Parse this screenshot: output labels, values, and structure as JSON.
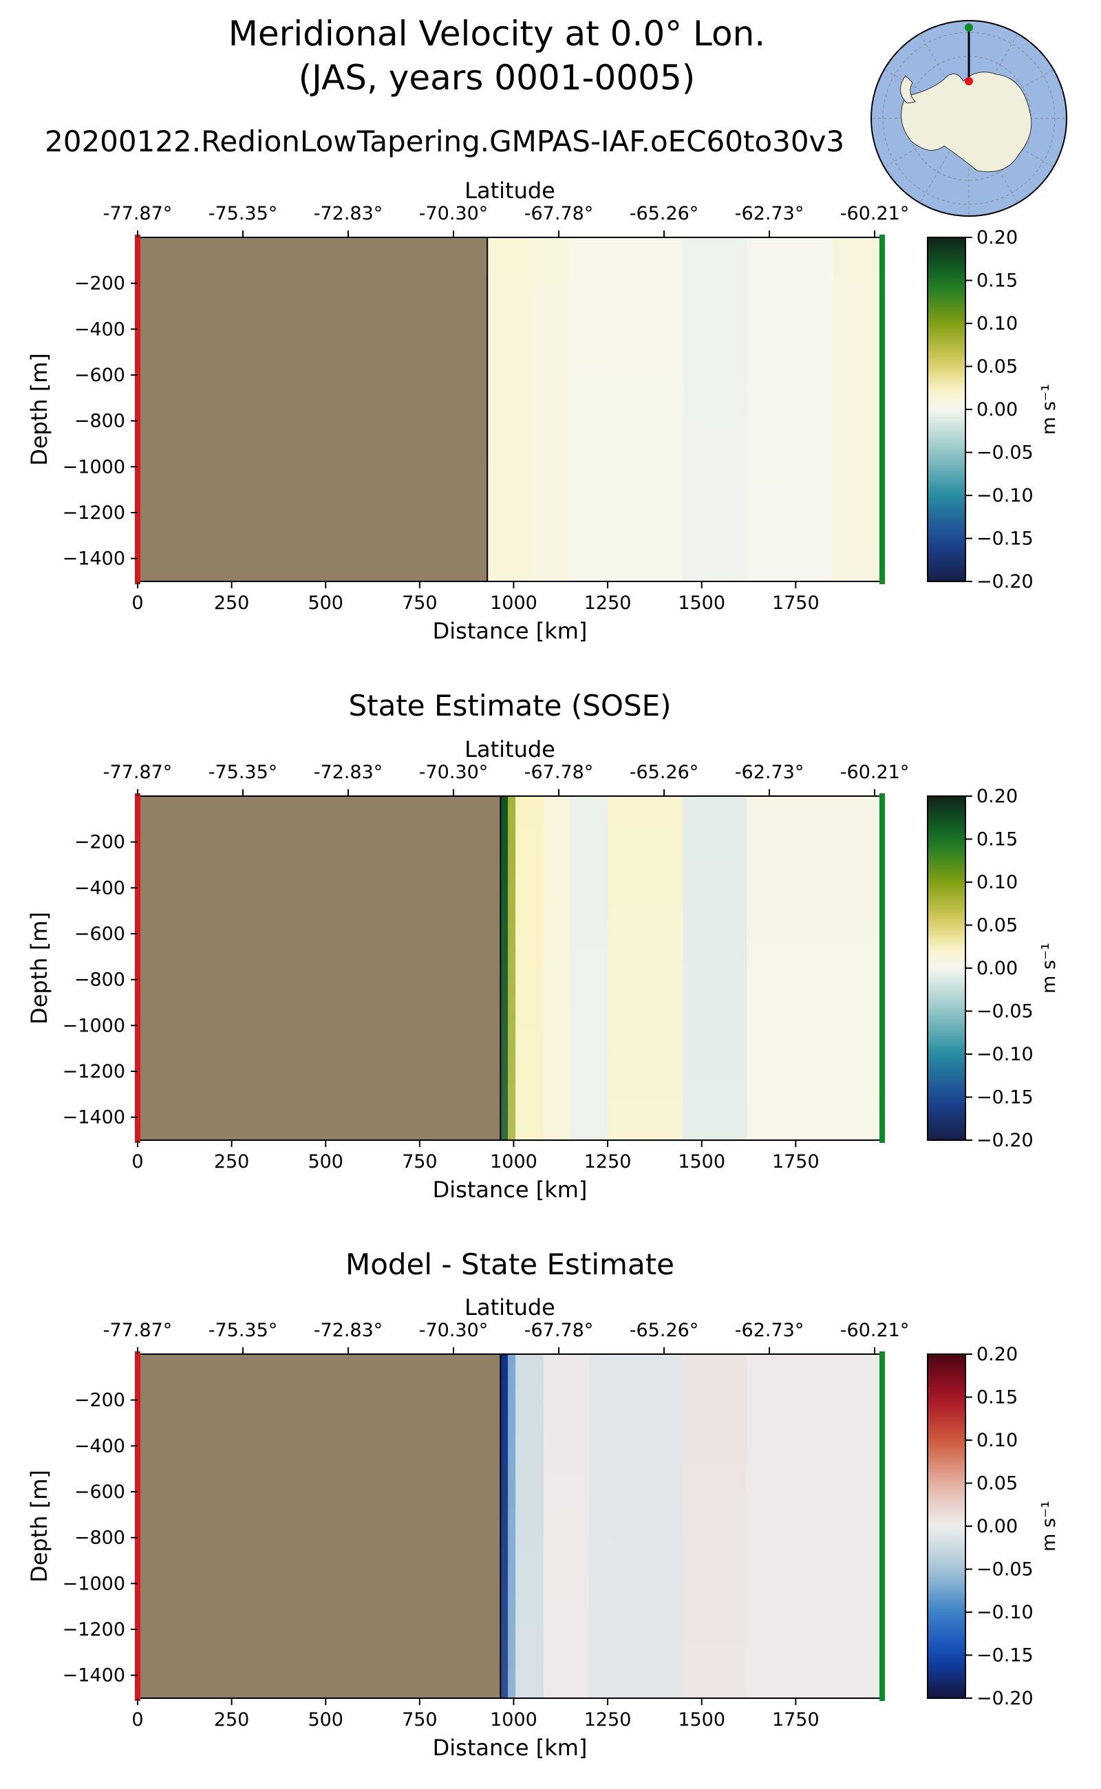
{
  "header": {
    "title_line1": "Meridional Velocity at 0.0° Lon.",
    "title_line2": "(JAS, years 0001-0005)"
  },
  "inset_map": {
    "ocean_color": "#9bb8e3",
    "land_color": "#efefdb",
    "start_marker_color": "#e8121b",
    "end_marker_color": "#0b8c2a"
  },
  "colorbar_unit": "m s⁻¹",
  "chart_data": [
    {
      "type": "heatmap",
      "title": "20200122.RedionLowTapering.GMPAS-IAF.oEC60to30v3",
      "xlabel": "Distance [km]",
      "ylabel": "Depth [m]",
      "top_xlabel": "Latitude",
      "xlim": [
        0,
        1980
      ],
      "ylim": [
        -1500,
        0
      ],
      "x_ticks": [
        0,
        250,
        500,
        750,
        1000,
        1250,
        1500,
        1750
      ],
      "y_ticks": [
        -200,
        -400,
        -600,
        -800,
        -1000,
        -1200,
        -1400
      ],
      "top_ticks": [
        "-77.87°",
        "-75.35°",
        "-72.83°",
        "-70.30°",
        "-67.78°",
        "-65.26°",
        "-62.73°",
        "-60.21°"
      ],
      "top_tick_distances": [
        0,
        280,
        560,
        840,
        1120,
        1400,
        1680,
        1960
      ],
      "land_end_km": 930,
      "land_color": "#8f8066",
      "colormap": "diverging_green_blue",
      "colorbar_ticks": [
        0.2,
        0.15,
        0.1,
        0.05,
        0.0,
        -0.05,
        -0.1,
        -0.15,
        -0.2
      ],
      "colorbar_range": [
        -0.2,
        0.2
      ],
      "bands": [
        {
          "x": [
            930,
            1050
          ],
          "value": 0.015
        },
        {
          "x": [
            1050,
            1150
          ],
          "value": 0.01
        },
        {
          "x": [
            1150,
            1450
          ],
          "value": 0.004
        },
        {
          "x": [
            1450,
            1620
          ],
          "value": -0.004
        },
        {
          "x": [
            1620,
            1850
          ],
          "value": 0.002
        },
        {
          "x": [
            1850,
            1980
          ],
          "value": 0.01
        }
      ]
    },
    {
      "type": "heatmap",
      "title": "State Estimate (SOSE)",
      "xlabel": "Distance [km]",
      "ylabel": "Depth [m]",
      "top_xlabel": "Latitude",
      "xlim": [
        0,
        1980
      ],
      "ylim": [
        -1500,
        0
      ],
      "x_ticks": [
        0,
        250,
        500,
        750,
        1000,
        1250,
        1500,
        1750
      ],
      "y_ticks": [
        -200,
        -400,
        -600,
        -800,
        -1000,
        -1200,
        -1400
      ],
      "top_ticks": [
        "-77.87°",
        "-75.35°",
        "-72.83°",
        "-70.30°",
        "-67.78°",
        "-65.26°",
        "-62.73°",
        "-60.21°"
      ],
      "top_tick_distances": [
        0,
        280,
        560,
        840,
        1120,
        1400,
        1680,
        1960
      ],
      "land_end_km": 965,
      "land_color": "#8f8066",
      "colormap": "diverging_green_blue",
      "colorbar_ticks": [
        0.2,
        0.15,
        0.1,
        0.05,
        0.0,
        -0.05,
        -0.1,
        -0.15,
        -0.2
      ],
      "colorbar_range": [
        -0.2,
        0.2
      ],
      "bands": [
        {
          "x": [
            965,
            985
          ],
          "value": 0.17
        },
        {
          "x": [
            985,
            1005
          ],
          "value": 0.08
        },
        {
          "x": [
            1005,
            1080
          ],
          "value": 0.025
        },
        {
          "x": [
            1080,
            1150
          ],
          "value": 0.012
        },
        {
          "x": [
            1150,
            1250
          ],
          "value": -0.005
        },
        {
          "x": [
            1250,
            1450
          ],
          "value": 0.02
        },
        {
          "x": [
            1450,
            1620
          ],
          "value": -0.01
        },
        {
          "x": [
            1620,
            1980
          ],
          "value": 0.006
        }
      ]
    },
    {
      "type": "heatmap",
      "title": "Model - State Estimate",
      "xlabel": "Distance [km]",
      "ylabel": "Depth [m]",
      "top_xlabel": "Latitude",
      "xlim": [
        0,
        1980
      ],
      "ylim": [
        -1500,
        0
      ],
      "x_ticks": [
        0,
        250,
        500,
        750,
        1000,
        1250,
        1500,
        1750
      ],
      "y_ticks": [
        -200,
        -400,
        -600,
        -800,
        -1000,
        -1200,
        -1400
      ],
      "top_ticks": [
        "-77.87°",
        "-75.35°",
        "-72.83°",
        "-70.30°",
        "-67.78°",
        "-65.26°",
        "-62.73°",
        "-60.21°"
      ],
      "top_tick_distances": [
        0,
        280,
        560,
        840,
        1120,
        1400,
        1680,
        1960
      ],
      "land_end_km": 965,
      "land_color": "#8f8066",
      "colormap": "diverging_red_blue",
      "colorbar_ticks": [
        0.2,
        0.15,
        0.1,
        0.05,
        0.0,
        -0.05,
        -0.1,
        -0.15,
        -0.2
      ],
      "colorbar_range": [
        -0.2,
        0.2
      ],
      "bands": [
        {
          "x": [
            965,
            985
          ],
          "value": -0.17
        },
        {
          "x": [
            985,
            1005
          ],
          "value": -0.07
        },
        {
          "x": [
            1005,
            1080
          ],
          "value": -0.02
        },
        {
          "x": [
            1080,
            1200
          ],
          "value": 0.004
        },
        {
          "x": [
            1200,
            1450
          ],
          "value": -0.01
        },
        {
          "x": [
            1450,
            1620
          ],
          "value": 0.008
        },
        {
          "x": [
            1620,
            1980
          ],
          "value": 0.003
        }
      ]
    }
  ]
}
